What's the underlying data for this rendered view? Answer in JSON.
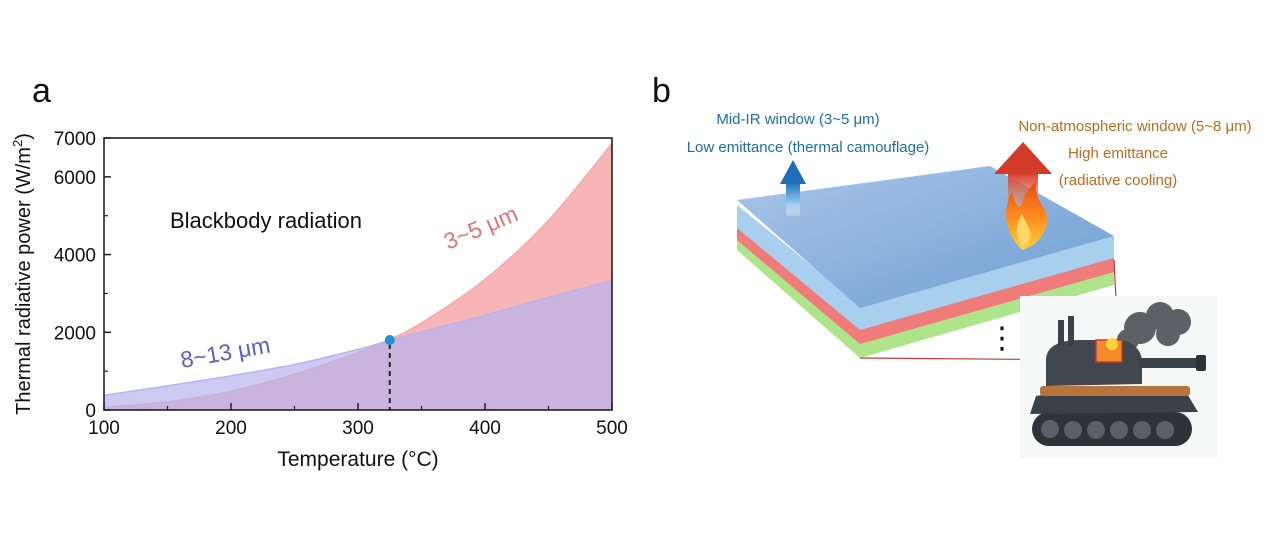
{
  "panels": {
    "a": {
      "label": "a"
    },
    "b": {
      "label": "b"
    }
  },
  "chart_data": {
    "type": "area",
    "title": "Blackbody radiation",
    "xlabel": "Temperature (°C)",
    "ylabel": "Thermal radiative power (W/m",
    "ylabel_sup": "2",
    "ylabel_end": ")",
    "xlim": [
      100,
      500
    ],
    "ylim": [
      0,
      7000
    ],
    "xticks": [
      100,
      200,
      300,
      400,
      500
    ],
    "yticks": [
      0,
      2000,
      4000,
      6000,
      7000
    ],
    "grid": false,
    "series": [
      {
        "name": "3~5 μm",
        "color": "#f7a8a8",
        "x": [
          100,
          150,
          200,
          250,
          300,
          325,
          350,
          400,
          450,
          500
        ],
        "y": [
          70,
          210,
          480,
          920,
          1480,
          1820,
          2240,
          3360,
          4880,
          6860
        ]
      },
      {
        "name": "8~13 μm",
        "color": "#b7b3ee",
        "x": [
          100,
          150,
          200,
          250,
          300,
          325,
          350,
          400,
          450,
          500
        ],
        "y": [
          380,
          620,
          880,
          1170,
          1560,
          1790,
          2010,
          2440,
          2900,
          3330
        ]
      }
    ],
    "crossover": {
      "x": 325,
      "y": 1800,
      "color": "#1e90d6"
    }
  },
  "diagram": {
    "left_caption": {
      "line1": "Mid-IR window (3~5 μm)",
      "line2": "Low emittance (thermal camouflage)",
      "color": "#1a6fa8"
    },
    "right_caption": {
      "line1": "Non-atmospheric window (5~8 μm)",
      "line2": "High emittance",
      "line3": "(radiative cooling)",
      "color": "#c06a1a"
    },
    "layer_colors": {
      "top": "#8fb4dc",
      "side_blue": "#a8cfee",
      "side_red": "#ef7b7b",
      "side_green": "#aee48a"
    },
    "ellipsis": "⋮"
  }
}
